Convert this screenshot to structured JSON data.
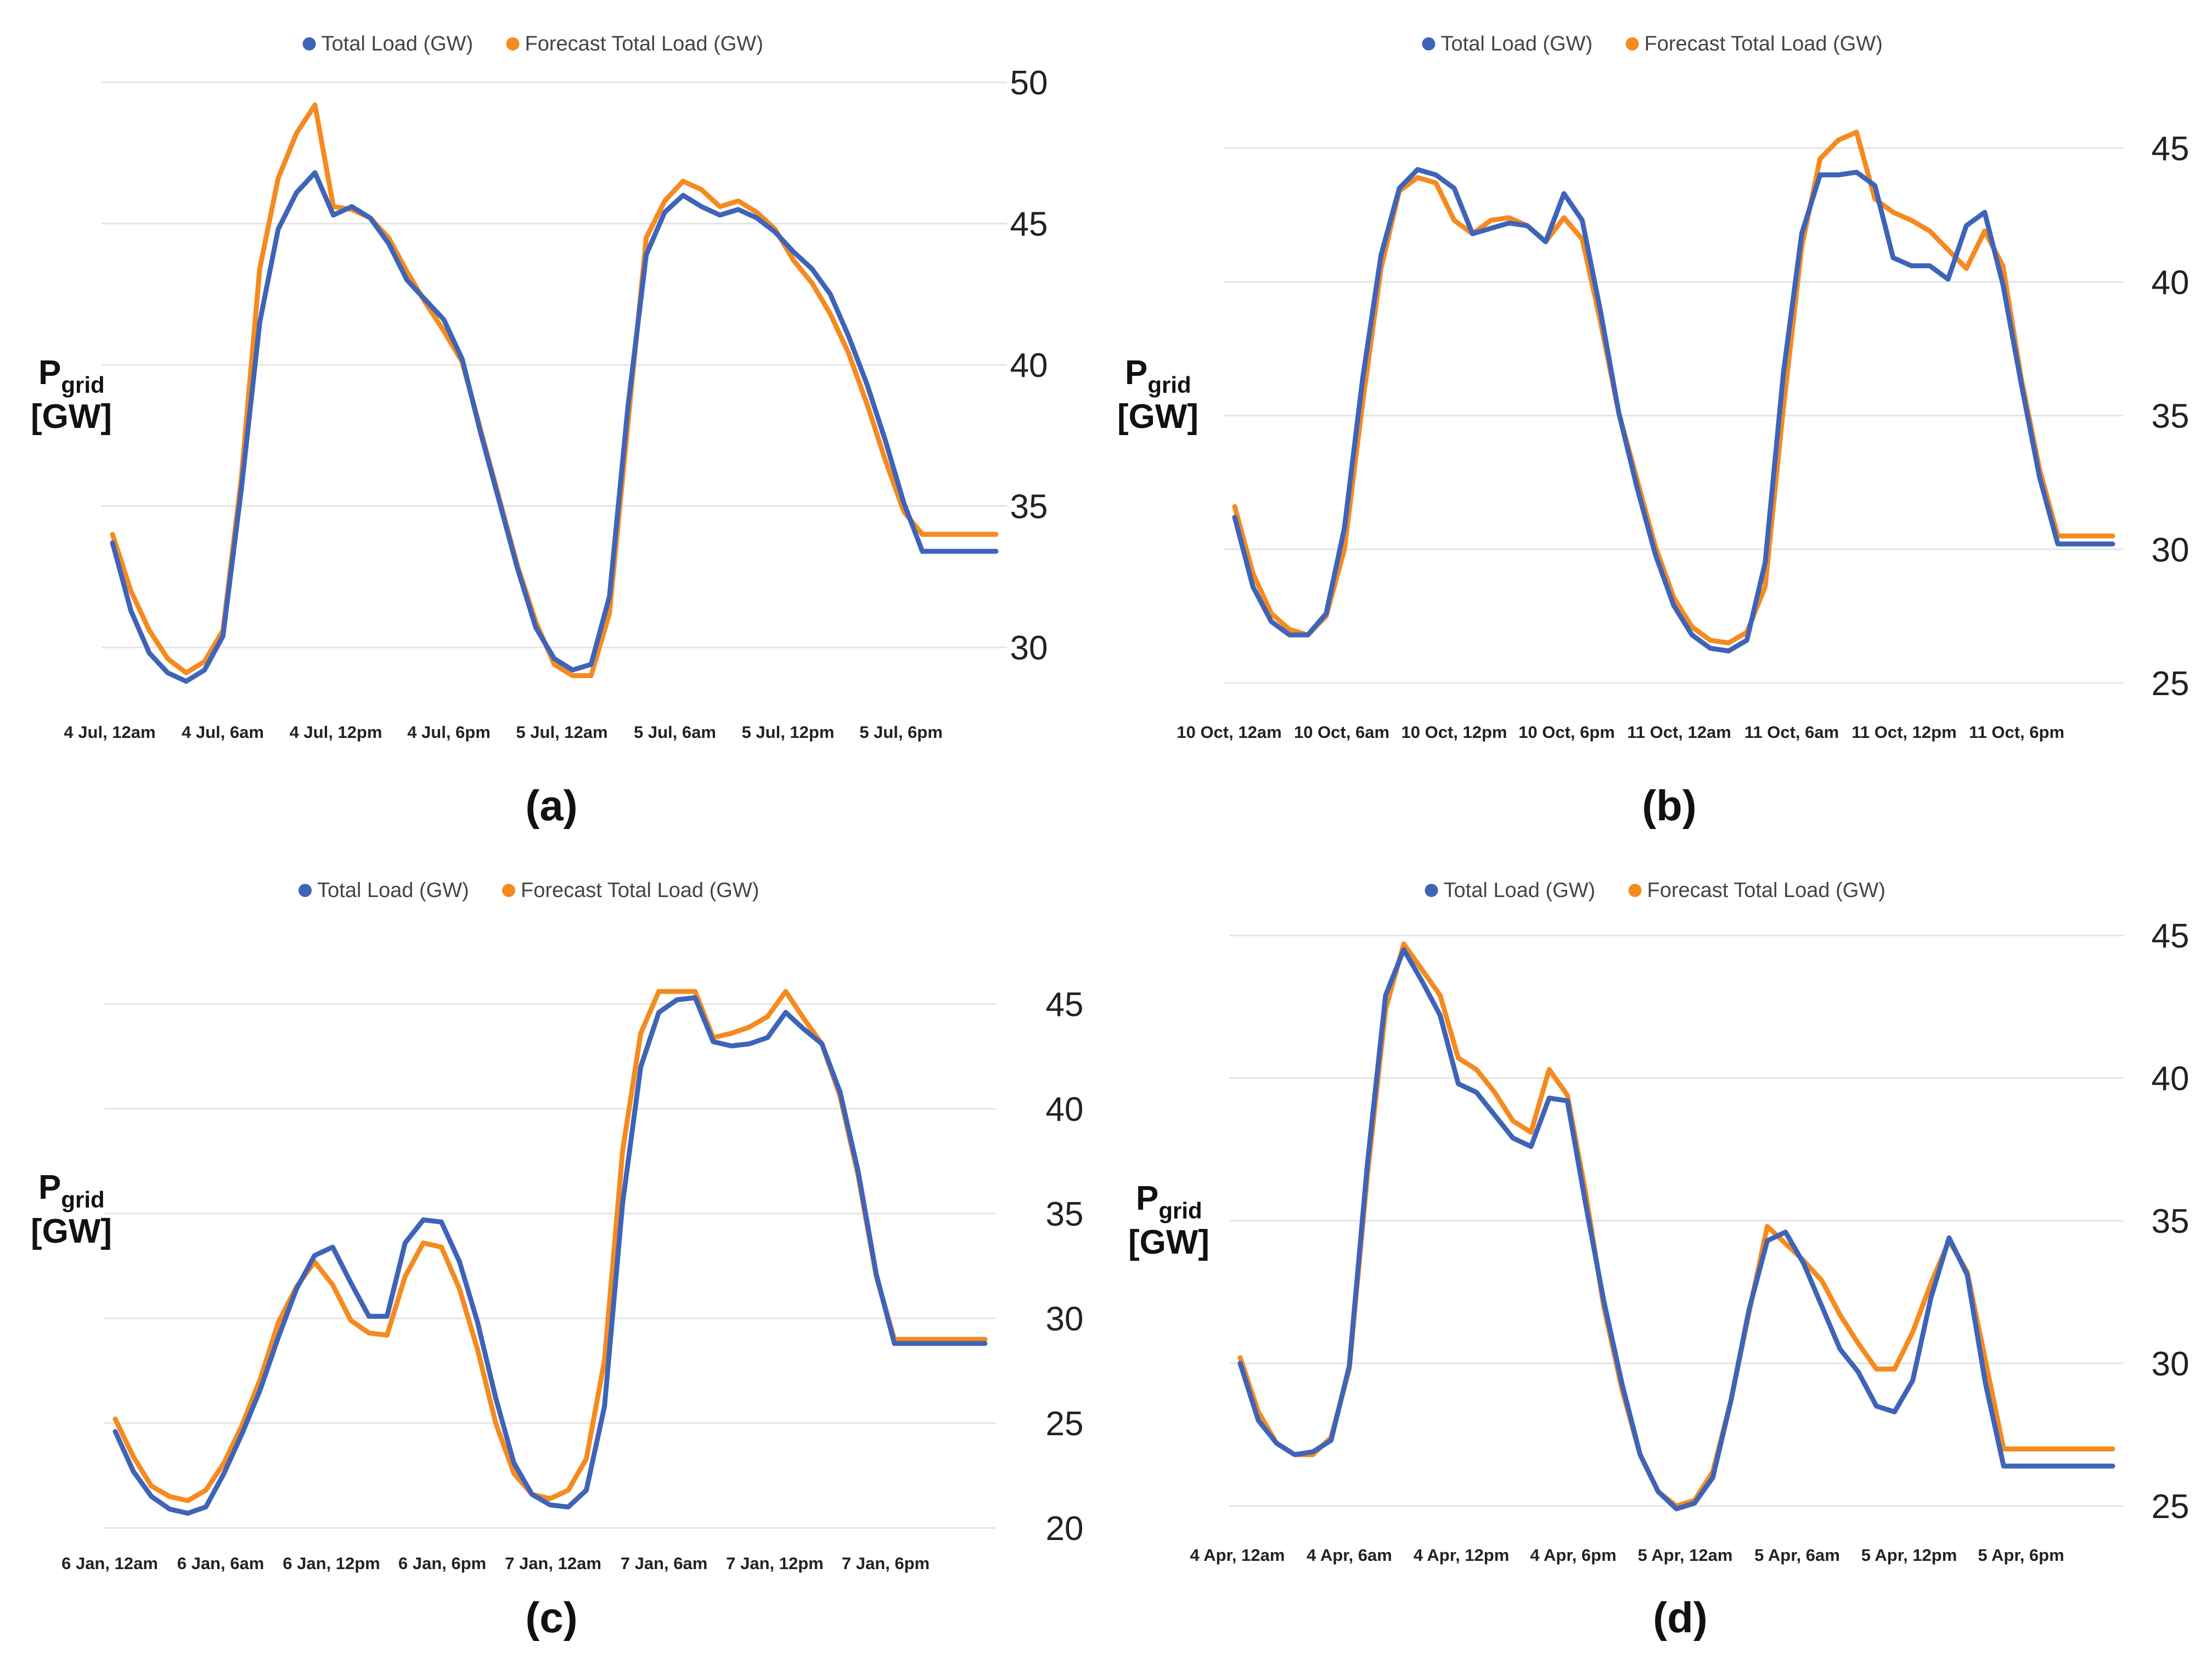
{
  "colors": {
    "actual": "#3e64b8",
    "forecast": "#f58a1f",
    "grid": "#e4e4e4",
    "text": "#222222"
  },
  "legend": {
    "actual": "Total Load (GW)",
    "forecast": "Forecast Total Load (GW)"
  },
  "ylabel": {
    "main": "P",
    "sub": "grid",
    "unit": "[GW]"
  },
  "chart_data": [
    {
      "panel": "(a)",
      "type": "line",
      "title": "",
      "xlabel": "",
      "ylabel": "Pgrid [GW]",
      "x_ticks": [
        "4 Jul, 12am",
        "4 Jul, 6am",
        "4 Jul, 12pm",
        "4 Jul, 6pm",
        "5 Jul, 12am",
        "5 Jul, 6am",
        "5 Jul, 12pm",
        "5 Jul, 6pm"
      ],
      "y_ticks": [
        30,
        35,
        40,
        45,
        50
      ],
      "ylim": [
        28,
        51
      ],
      "x_hours": [
        0,
        1,
        2,
        3,
        4,
        5,
        6,
        7,
        8,
        9,
        10,
        11,
        12,
        13,
        14,
        15,
        16,
        17,
        18,
        19,
        20,
        21,
        22,
        23,
        24,
        25,
        26,
        27,
        28,
        29,
        30,
        31,
        32,
        33,
        34,
        35,
        36,
        37,
        38,
        39,
        40,
        41,
        42,
        43,
        44,
        45,
        46,
        47,
        48
      ],
      "series": [
        {
          "name": "Total Load (GW)",
          "values": [
            33.7,
            31.3,
            29.8,
            29.1,
            28.8,
            29.2,
            30.4,
            35.6,
            41.5,
            44.8,
            46.1,
            46.8,
            45.3,
            45.6,
            45.2,
            44.3,
            43.0,
            42.3,
            41.6,
            40.2,
            37.6,
            35.2,
            32.8,
            30.7,
            29.6,
            29.2,
            29.4,
            31.8,
            38.5,
            43.9,
            45.4,
            46.0,
            45.6,
            45.3,
            45.5,
            45.2,
            44.7,
            44.0,
            43.4,
            42.5,
            41.0,
            39.3,
            37.3,
            35.1,
            33.4,
            33.4,
            33.4,
            33.4,
            33.4
          ]
        },
        {
          "name": "Forecast Total Load (GW)",
          "values": [
            34.0,
            32.0,
            30.6,
            29.6,
            29.1,
            29.5,
            30.6,
            36.0,
            43.4,
            46.6,
            48.2,
            49.2,
            45.6,
            45.5,
            45.2,
            44.5,
            43.3,
            42.2,
            41.2,
            40.1,
            37.7,
            35.3,
            32.9,
            30.9,
            29.4,
            29.0,
            29.0,
            31.2,
            37.9,
            44.5,
            45.8,
            46.5,
            46.2,
            45.6,
            45.8,
            45.4,
            44.8,
            43.7,
            42.9,
            41.8,
            40.4,
            38.6,
            36.6,
            34.8,
            34.0,
            34.0,
            34.0,
            34.0,
            34.0
          ]
        }
      ]
    },
    {
      "panel": "(b)",
      "type": "line",
      "title": "",
      "xlabel": "",
      "ylabel": "Pgrid [GW]",
      "x_ticks": [
        "10 Oct, 12am",
        "10 Oct, 6am",
        "10 Oct, 12pm",
        "10 Oct, 6pm",
        "11 Oct, 12am",
        "11 Oct, 6am",
        "11 Oct, 12pm",
        "11 Oct, 6pm"
      ],
      "y_ticks": [
        25,
        30,
        35,
        40,
        45
      ],
      "ylim": [
        25,
        46
      ],
      "x_hours": [
        0,
        1,
        2,
        3,
        4,
        5,
        6,
        7,
        8,
        9,
        10,
        11,
        12,
        13,
        14,
        15,
        16,
        17,
        18,
        19,
        20,
        21,
        22,
        23,
        24,
        25,
        26,
        27,
        28,
        29,
        30,
        31,
        32,
        33,
        34,
        35,
        36,
        37,
        38,
        39,
        40,
        41,
        42,
        43,
        44,
        45,
        46,
        47,
        48
      ],
      "series": [
        {
          "name": "Total Load (GW)",
          "values": [
            31.2,
            28.6,
            27.3,
            26.8,
            26.8,
            27.6,
            30.8,
            36.4,
            41.0,
            43.5,
            44.2,
            44.0,
            43.5,
            41.8,
            42.0,
            42.2,
            42.1,
            41.5,
            43.3,
            42.3,
            38.9,
            35.1,
            32.3,
            29.8,
            27.9,
            26.8,
            26.3,
            26.2,
            26.6,
            29.5,
            36.6,
            41.8,
            44.0,
            44.0,
            44.1,
            43.6,
            40.9,
            40.6,
            40.6,
            40.1,
            42.1,
            42.6,
            39.9,
            36.2,
            32.7,
            30.2,
            30.2,
            30.2,
            30.2
          ]
        },
        {
          "name": "Forecast Total Load (GW)",
          "values": [
            31.6,
            29.1,
            27.6,
            27.0,
            26.8,
            27.5,
            30.0,
            35.5,
            40.5,
            43.4,
            43.9,
            43.7,
            42.3,
            41.8,
            42.3,
            42.4,
            42.1,
            41.5,
            42.4,
            41.6,
            38.5,
            35.1,
            32.6,
            30.1,
            28.2,
            27.1,
            26.6,
            26.5,
            26.9,
            28.6,
            35.3,
            41.3,
            44.6,
            45.3,
            45.6,
            43.1,
            42.6,
            42.3,
            41.9,
            41.2,
            40.5,
            41.9,
            40.6,
            36.4,
            33.0,
            30.5,
            30.5,
            30.5,
            30.5
          ]
        }
      ]
    },
    {
      "panel": "(c)",
      "type": "line",
      "title": "",
      "xlabel": "",
      "ylabel": "Pgrid [GW]",
      "x_ticks": [
        "6 Jan, 12am",
        "6 Jan, 6am",
        "6 Jan, 12pm",
        "6 Jan, 6pm",
        "7 Jan, 12am",
        "7 Jan, 6am",
        "7 Jan, 12pm",
        "7 Jan, 6pm"
      ],
      "y_ticks": [
        20,
        25,
        30,
        35,
        40,
        45
      ],
      "ylim": [
        20,
        47
      ],
      "x_hours": [
        0,
        1,
        2,
        3,
        4,
        5,
        6,
        7,
        8,
        9,
        10,
        11,
        12,
        13,
        14,
        15,
        16,
        17,
        18,
        19,
        20,
        21,
        22,
        23,
        24,
        25,
        26,
        27,
        28,
        29,
        30,
        31,
        32,
        33,
        34,
        35,
        36,
        37,
        38,
        39,
        40,
        41,
        42,
        43,
        44,
        45,
        46,
        47,
        48
      ],
      "series": [
        {
          "name": "Total Load (GW)",
          "values": [
            24.6,
            22.7,
            21.5,
            20.9,
            20.7,
            21.0,
            22.6,
            24.5,
            26.6,
            29.1,
            31.4,
            33.0,
            33.4,
            31.7,
            30.1,
            30.1,
            33.6,
            34.7,
            34.6,
            32.7,
            29.8,
            26.2,
            23.1,
            21.6,
            21.1,
            21.0,
            21.8,
            25.8,
            35.5,
            42.0,
            44.6,
            45.2,
            45.3,
            43.2,
            43.0,
            43.1,
            43.4,
            44.6,
            43.8,
            43.1,
            40.8,
            37.0,
            32.1,
            28.8,
            28.8,
            28.8,
            28.8,
            28.8,
            28.8
          ]
        },
        {
          "name": "Forecast Total Load (GW)",
          "values": [
            25.2,
            23.4,
            22.0,
            21.5,
            21.3,
            21.8,
            23.1,
            24.9,
            27.1,
            29.8,
            31.5,
            32.7,
            31.6,
            29.9,
            29.3,
            29.2,
            32.0,
            33.6,
            33.4,
            31.4,
            28.5,
            25.0,
            22.6,
            21.6,
            21.4,
            21.8,
            23.3,
            28.0,
            38.0,
            43.6,
            45.6,
            45.6,
            45.6,
            43.4,
            43.6,
            43.9,
            44.4,
            45.6,
            44.3,
            43.1,
            40.6,
            36.8,
            32.0,
            29.0,
            29.0,
            29.0,
            29.0,
            29.0,
            29.0
          ]
        }
      ]
    },
    {
      "panel": "(d)",
      "type": "line",
      "title": "",
      "xlabel": "",
      "ylabel": "Pgrid [GW]",
      "x_ticks": [
        "4 Apr, 12am",
        "4 Apr, 6am",
        "4 Apr, 12pm",
        "4 Apr, 6pm",
        "5 Apr, 12am",
        "5 Apr, 6am",
        "5 Apr, 12pm",
        "5 Apr, 6pm"
      ],
      "y_ticks": [
        25,
        30,
        35,
        40,
        45
      ],
      "ylim": [
        25,
        45
      ],
      "x_hours": [
        0,
        1,
        2,
        3,
        4,
        5,
        6,
        7,
        8,
        9,
        10,
        11,
        12,
        13,
        14,
        15,
        16,
        17,
        18,
        19,
        20,
        21,
        22,
        23,
        24,
        25,
        26,
        27,
        28,
        29,
        30,
        31,
        32,
        33,
        34,
        35,
        36,
        37,
        38,
        39,
        40,
        41,
        42,
        43,
        44,
        45,
        46,
        47,
        48
      ],
      "series": [
        {
          "name": "Total Load (GW)",
          "values": [
            30.0,
            28.0,
            27.2,
            26.8,
            26.9,
            27.3,
            29.9,
            37.0,
            42.9,
            44.5,
            43.4,
            42.2,
            39.8,
            39.5,
            38.7,
            37.9,
            37.6,
            39.3,
            39.2,
            35.6,
            32.2,
            29.3,
            26.8,
            25.5,
            24.9,
            25.1,
            26.0,
            28.7,
            31.9,
            34.3,
            34.6,
            33.5,
            32.0,
            30.5,
            29.7,
            28.5,
            28.3,
            29.4,
            32.3,
            34.4,
            33.1,
            29.3,
            26.4,
            26.4,
            26.4,
            26.4,
            26.4,
            26.4,
            26.4
          ]
        },
        {
          "name": "Forecast Total Load (GW)",
          "values": [
            30.2,
            28.3,
            27.2,
            26.8,
            26.8,
            27.4,
            29.8,
            36.6,
            42.4,
            44.7,
            43.8,
            42.9,
            40.7,
            40.3,
            39.5,
            38.5,
            38.1,
            40.3,
            39.4,
            36.0,
            32.0,
            29.1,
            26.8,
            25.5,
            25.0,
            25.2,
            26.2,
            28.7,
            31.8,
            34.8,
            34.2,
            33.6,
            32.9,
            31.7,
            30.7,
            29.8,
            29.8,
            31.1,
            32.8,
            34.3,
            33.2,
            30.1,
            27.0,
            27.0,
            27.0,
            27.0,
            27.0,
            27.0,
            27.0
          ]
        }
      ]
    }
  ]
}
